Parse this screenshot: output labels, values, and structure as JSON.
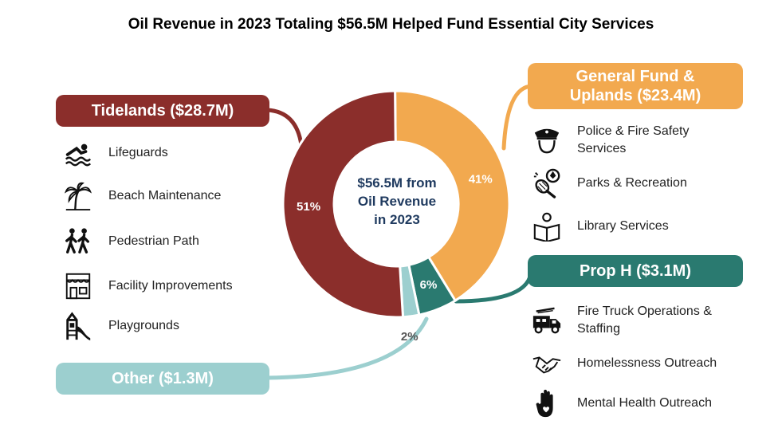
{
  "title": "Oil Revenue in 2023 Totaling $56.5M Helped Fund Essential City Services",
  "center_label": {
    "line1": "$56.5M from",
    "line2": "Oil Revenue",
    "line3": "in 2023"
  },
  "chart_data": {
    "type": "pie",
    "style": "donut",
    "title": "Oil Revenue in 2023 Totaling $56.5M Helped Fund Essential City Services",
    "total": "$56.5M",
    "slices": [
      {
        "name": "General Fund & Uplands",
        "amount_millions": 23.4,
        "percent": 41,
        "label": "41%",
        "color": "#f2a94f"
      },
      {
        "name": "Prop H",
        "amount_millions": 3.1,
        "percent": 6,
        "label": "6%",
        "color": "#2a7a70"
      },
      {
        "name": "Other",
        "amount_millions": 1.3,
        "percent": 2,
        "label": "2%",
        "color": "#9ccfcf"
      },
      {
        "name": "Tidelands",
        "amount_millions": 28.7,
        "percent": 51,
        "label": "51%",
        "color": "#8b2e2b"
      }
    ]
  },
  "groups": {
    "tidelands": {
      "label": "Tidelands ($28.7M)",
      "color": "#8b2e2b",
      "items": [
        {
          "label": "Lifeguards",
          "icon": "swimmer-icon"
        },
        {
          "label": "Beach Maintenance",
          "icon": "palm-tree-icon"
        },
        {
          "label": "Pedestrian Path",
          "icon": "pedestrians-icon"
        },
        {
          "label": "Facility Improvements",
          "icon": "storefront-icon"
        },
        {
          "label": "Playgrounds",
          "icon": "playground-slide-icon"
        }
      ]
    },
    "general_fund": {
      "label_line1": "General Fund &",
      "label_line2": "Uplands ($23.4M)",
      "color": "#f2a94f",
      "items": [
        {
          "label_line1": "Police & Fire Safety",
          "label_line2": "Services",
          "icon": "police-officer-icon"
        },
        {
          "label_line1": "Parks & Recreation",
          "label_line2": "",
          "icon": "ball-racket-icon"
        },
        {
          "label_line1": "Library Services",
          "label_line2": "",
          "icon": "reader-icon"
        }
      ]
    },
    "prop_h": {
      "label": "Prop H ($3.1M)",
      "color": "#2a7a70",
      "items": [
        {
          "label_line1": "Fire Truck Operations &",
          "label_line2": "Staffing",
          "icon": "fire-truck-icon"
        },
        {
          "label_line1": "Homelessness Outreach",
          "label_line2": "",
          "icon": "handshake-icon"
        },
        {
          "label_line1": "Mental Health Outreach",
          "label_line2": "",
          "icon": "heart-hand-icon"
        }
      ]
    },
    "other": {
      "label": "Other ($1.3M)",
      "color": "#9ccfcf"
    }
  }
}
